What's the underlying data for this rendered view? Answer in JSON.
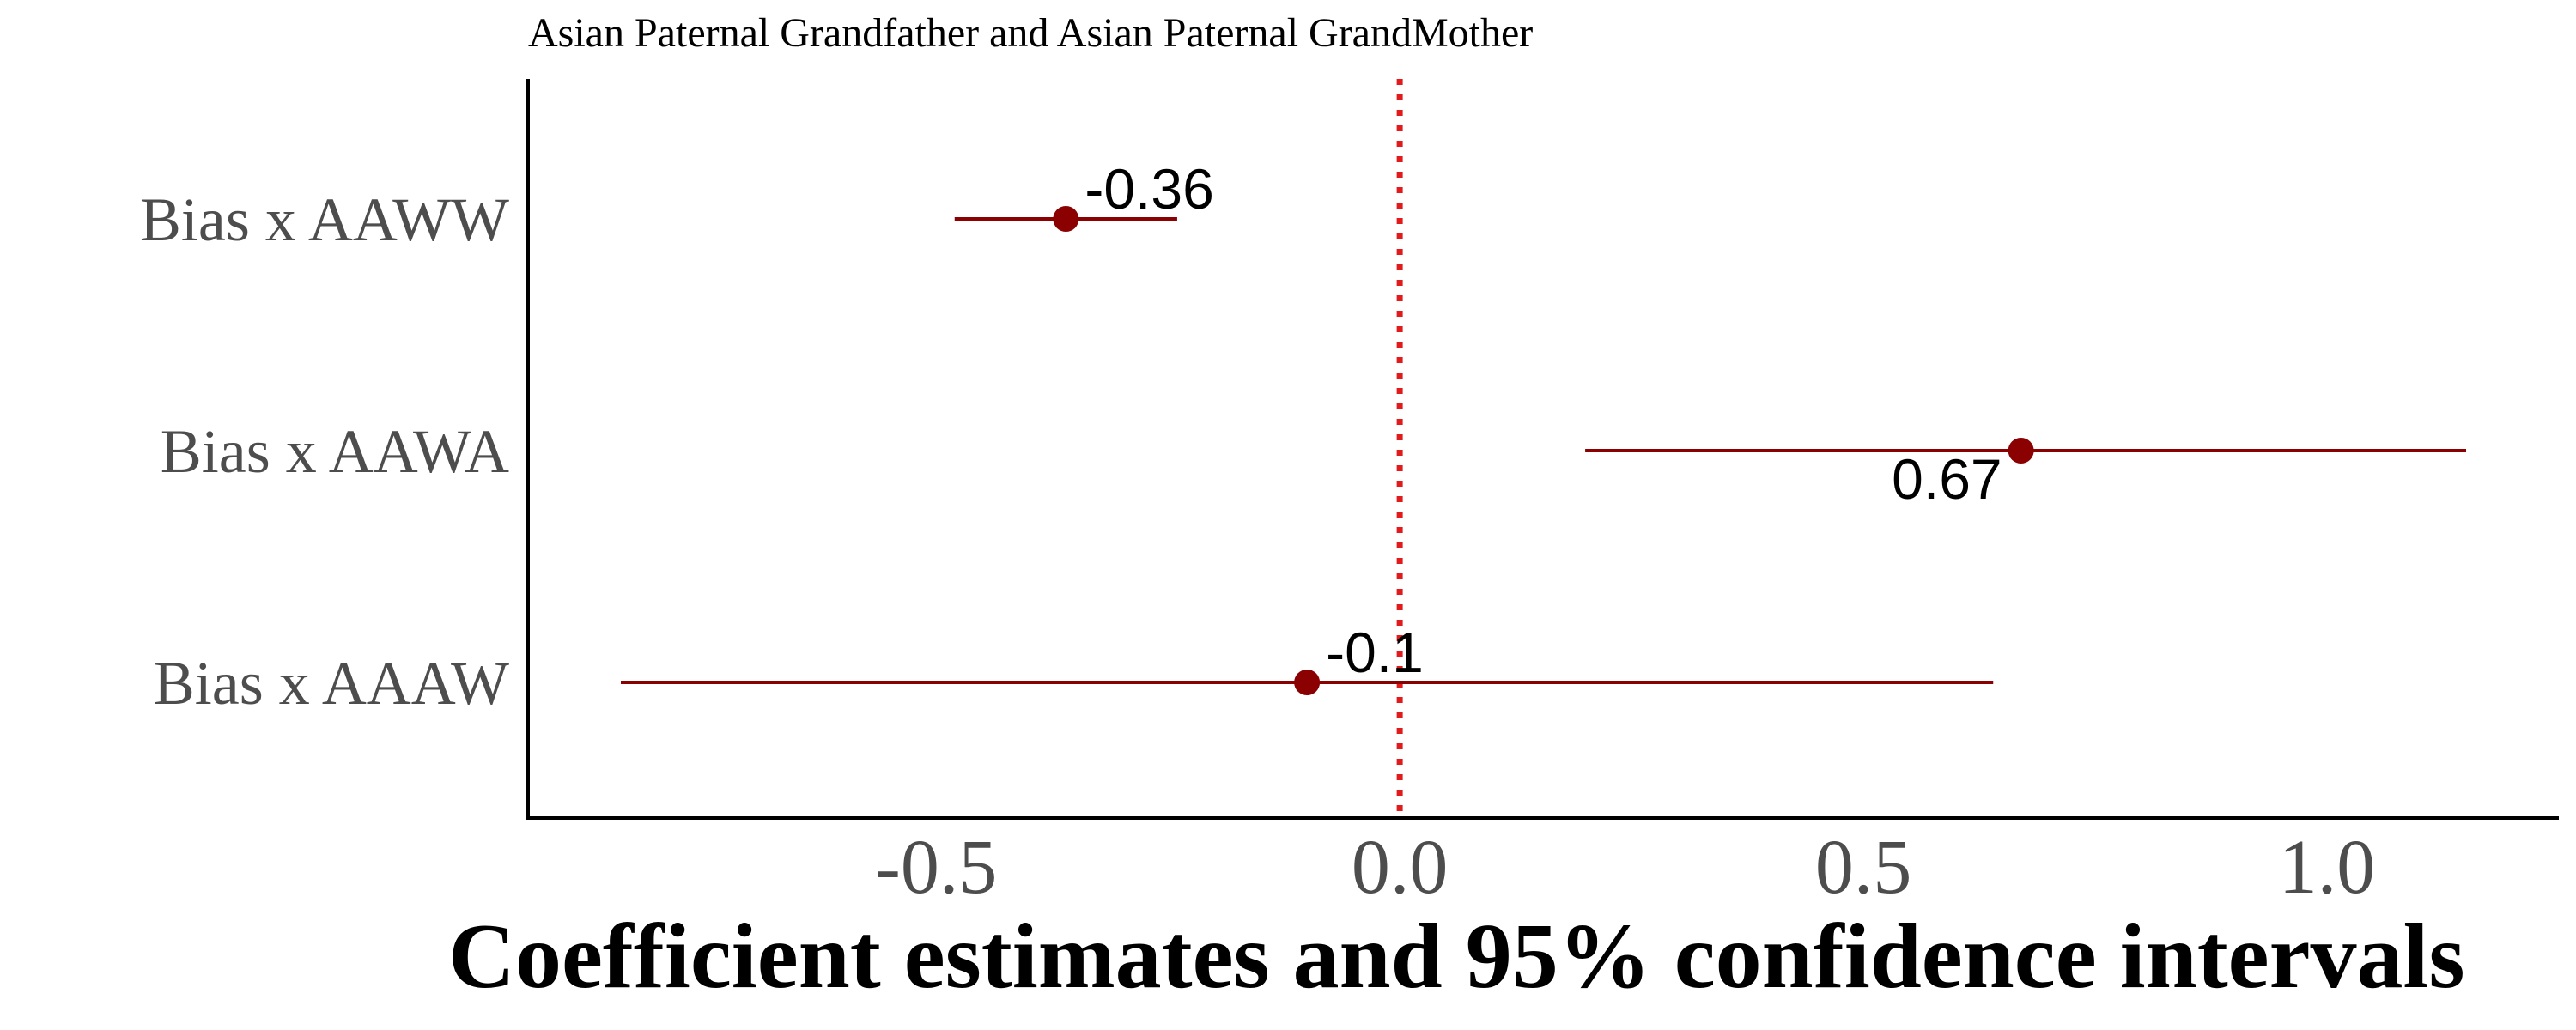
{
  "chart_data": {
    "type": "forest",
    "title": "Asian Paternal Grandfather and Asian Paternal GrandMother",
    "xlabel": "Coefficient estimates and 95% confidence intervals",
    "ylabel": "",
    "xlim": [
      -0.94,
      1.25
    ],
    "x_ticks": [
      -0.5,
      0.0,
      0.5,
      1.0
    ],
    "x_tick_labels": [
      "-0.5",
      "0.0",
      "0.5",
      "1.0"
    ],
    "reference_line": 0.0,
    "grid": false,
    "legend": "none",
    "point_color": "#8b0000",
    "reference_line_color": "#e31a1c",
    "categories": [
      "Bias x AAWW",
      "Bias x AAWA",
      "Bias x AAAW"
    ],
    "estimates": [
      -0.36,
      0.67,
      -0.1
    ],
    "ci_low": [
      -0.48,
      0.2,
      -0.84
    ],
    "ci_high": [
      -0.24,
      1.15,
      0.64
    ],
    "value_labels": [
      "-0.36",
      "0.67",
      "-0.1"
    ]
  }
}
